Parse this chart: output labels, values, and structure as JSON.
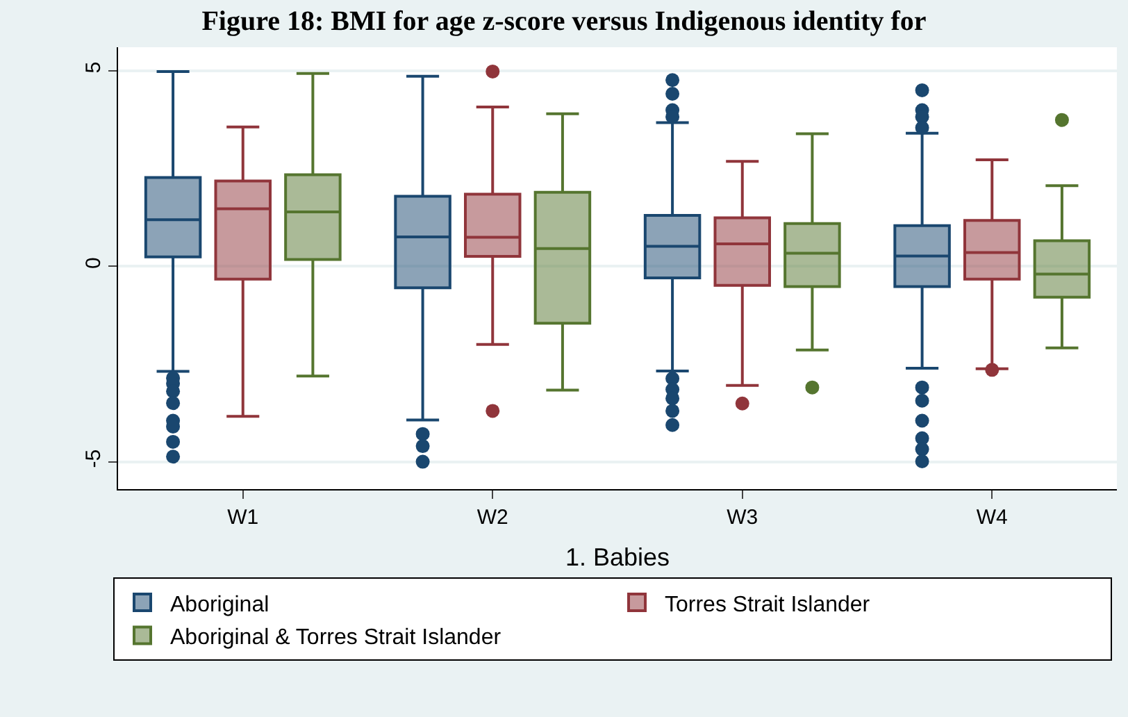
{
  "chart_data": {
    "type": "box",
    "title": "Figure 18: BMI for age z-score versus Indigenous identity for",
    "xlabel": "1. Babies",
    "categories": [
      "W1",
      "W2",
      "W3",
      "W4"
    ],
    "ylim": [
      -5.7,
      5.6
    ],
    "yticks": [
      -5,
      0,
      5
    ],
    "grid": "y",
    "legend": "bottom",
    "marker": "circle",
    "series": [
      {
        "name": "Aboriginal",
        "color": "#1a476f",
        "boxes": [
          {
            "low": -2.69,
            "q1": 0.24,
            "median": 1.19,
            "q3": 2.27,
            "high": 4.98,
            "outliers": [
              -2.86,
              -3.0,
              -3.2,
              -3.5,
              -3.95,
              -4.1,
              -4.49,
              -4.87
            ]
          },
          {
            "low": -3.93,
            "q1": -0.55,
            "median": 0.75,
            "q3": 1.79,
            "high": 4.86,
            "outliers": [
              -4.29,
              -4.6,
              -5.0
            ]
          },
          {
            "low": -2.68,
            "q1": -0.3,
            "median": 0.51,
            "q3": 1.3,
            "high": 3.67,
            "outliers": [
              4.76,
              4.41,
              3.99,
              3.82,
              -2.87,
              -3.15,
              -3.38,
              -3.7,
              -4.06
            ]
          },
          {
            "low": -2.61,
            "q1": -0.52,
            "median": 0.26,
            "q3": 1.04,
            "high": 3.4,
            "outliers": [
              4.5,
              3.99,
              3.82,
              3.54,
              -3.1,
              -3.44,
              -3.95,
              -4.4,
              -4.68,
              -4.99
            ]
          }
        ]
      },
      {
        "name": "Torres Strait Islander",
        "color": "#90353b",
        "boxes": [
          {
            "low": -3.84,
            "q1": -0.33,
            "median": 1.47,
            "q3": 2.18,
            "high": 3.56
          },
          {
            "low": -2.0,
            "q1": 0.25,
            "median": 0.74,
            "q3": 1.84,
            "high": 4.07,
            "outliers": [
              4.98,
              -3.7
            ]
          },
          {
            "low": -3.05,
            "q1": -0.49,
            "median": 0.57,
            "q3": 1.24,
            "high": 2.68,
            "outliers": [
              -3.51
            ]
          },
          {
            "low": -2.62,
            "q1": -0.33,
            "median": 0.35,
            "q3": 1.17,
            "high": 2.72,
            "outliers": [
              -2.65
            ]
          }
        ]
      },
      {
        "name": "Aboriginal & Torres Strait Islander",
        "color": "#55752f",
        "boxes": [
          {
            "low": -2.81,
            "q1": 0.17,
            "median": 1.39,
            "q3": 2.34,
            "high": 4.93
          },
          {
            "low": -3.17,
            "q1": -1.46,
            "median": 0.45,
            "q3": 1.89,
            "high": 3.9
          },
          {
            "low": -2.14,
            "q1": -0.52,
            "median": 0.33,
            "q3": 1.09,
            "high": 3.39,
            "outliers": [
              -3.1
            ]
          },
          {
            "low": -2.09,
            "q1": -0.79,
            "median": -0.2,
            "q3": 0.65,
            "high": 2.06,
            "outliers": [
              3.74
            ]
          }
        ]
      }
    ]
  }
}
